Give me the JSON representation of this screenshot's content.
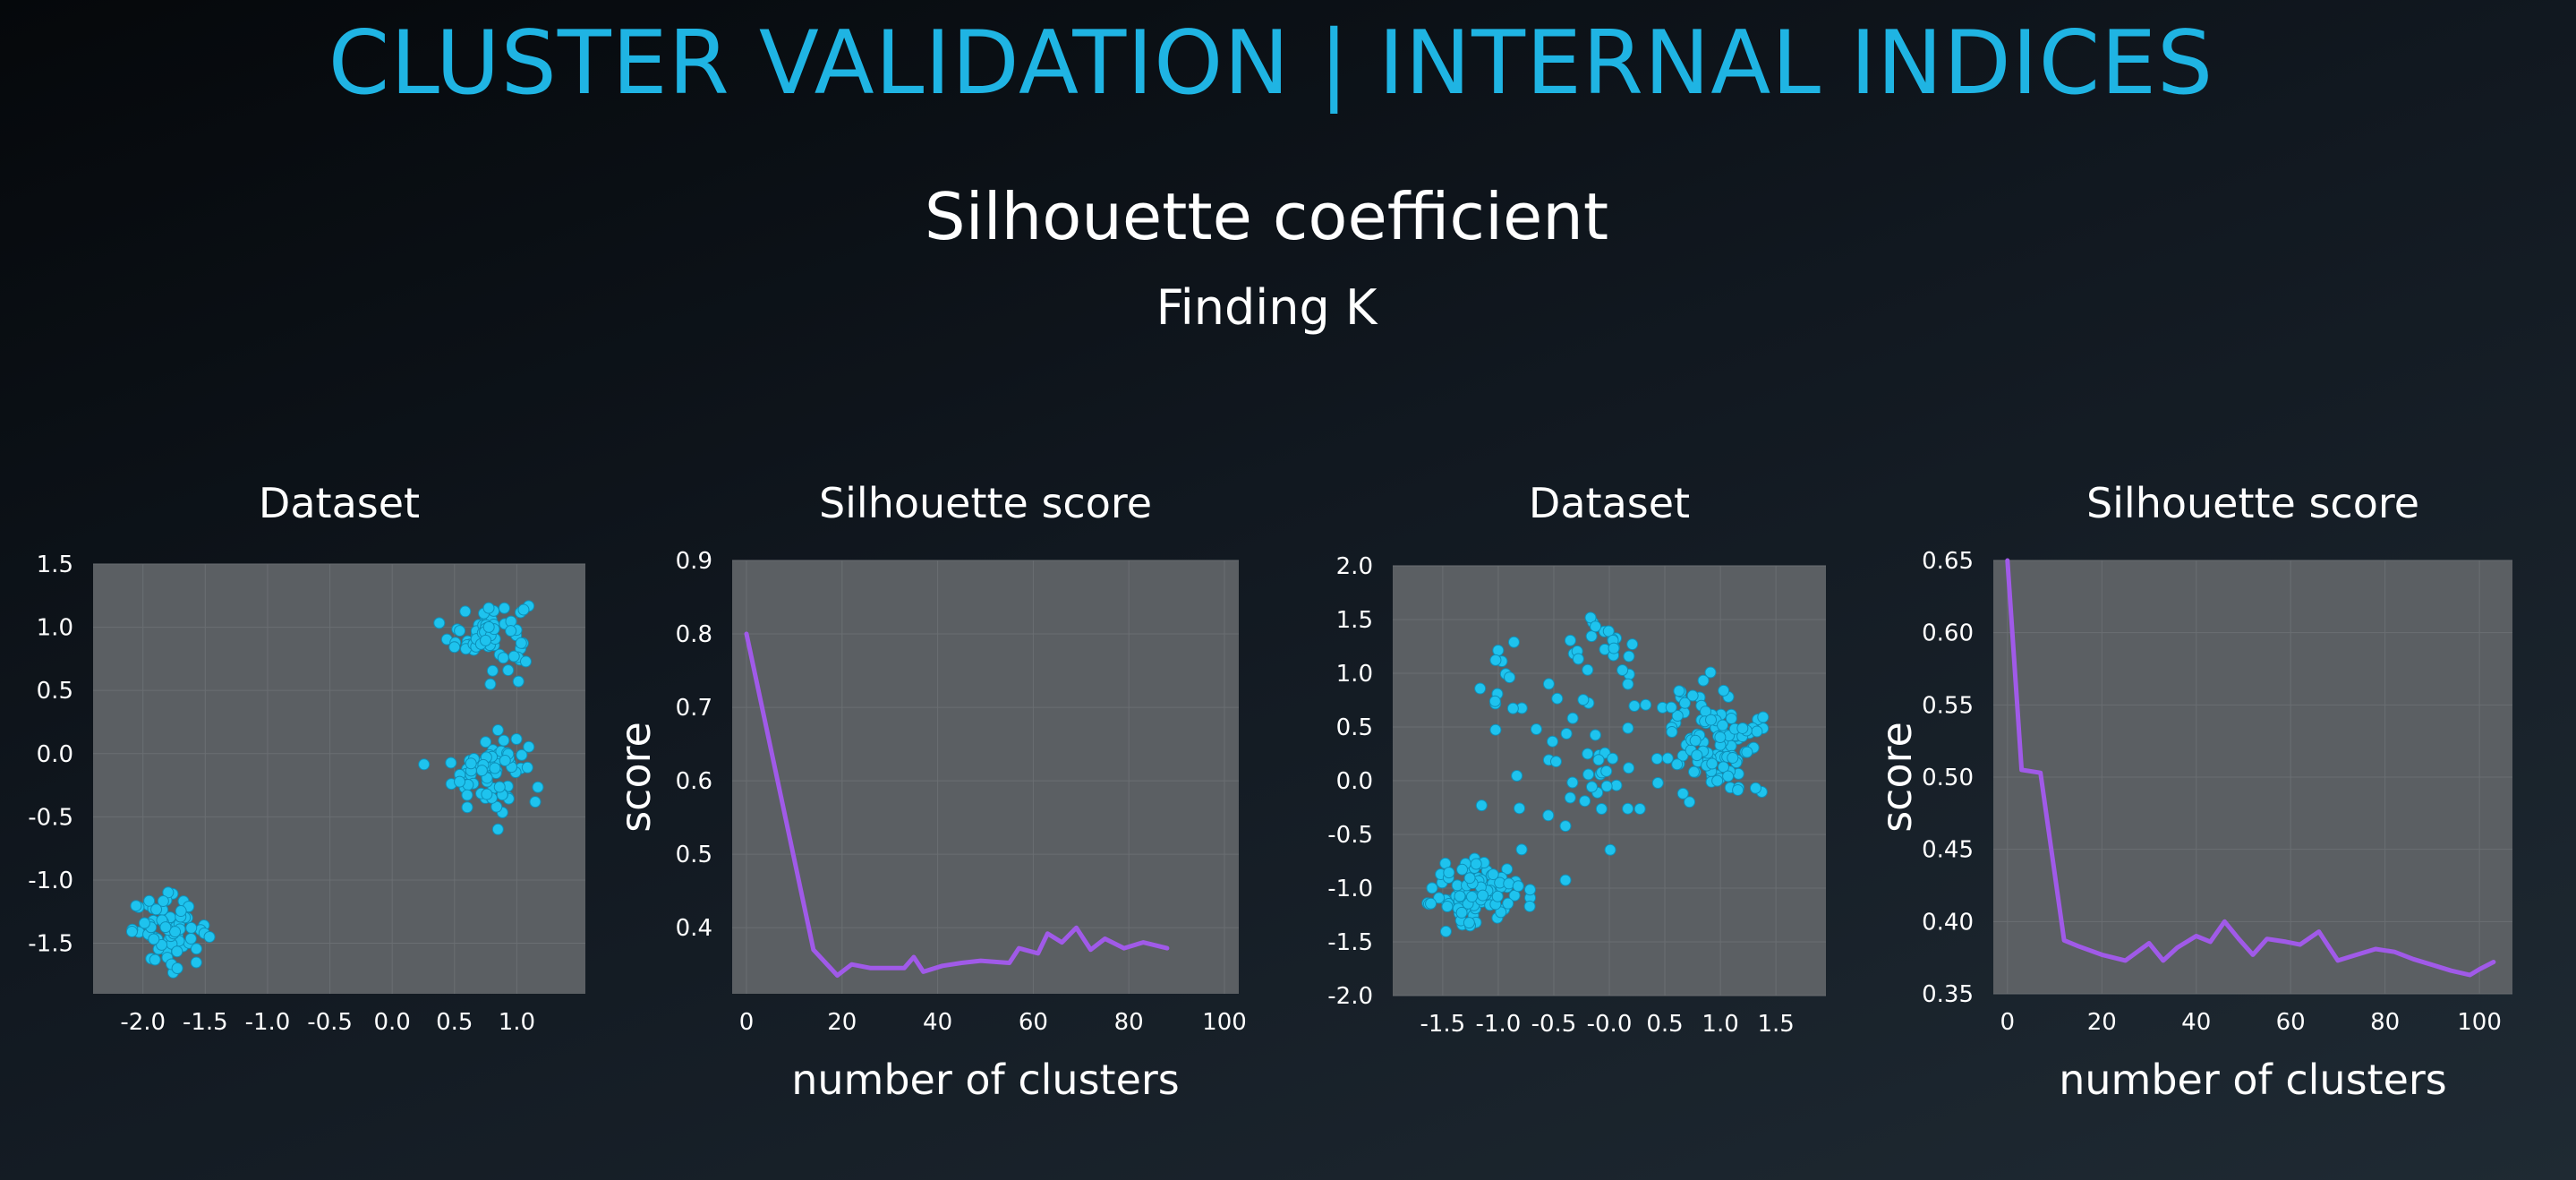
{
  "slide": {
    "title": "CLUSTER VALIDATION | INTERNAL INDICES",
    "subtitle": "Silhouette coefficient",
    "subsubtitle": "Finding K"
  },
  "colors": {
    "title": "#1fb4e3",
    "plot_bg": "#5b5f63",
    "point": "#1ec3ee",
    "line": "#a05ae8"
  },
  "chart_data": [
    {
      "type": "scatter",
      "title": "Dataset",
      "xlabel": "",
      "ylabel": "",
      "xlim": [
        -2.4,
        1.55
      ],
      "ylim": [
        -1.9,
        1.5
      ],
      "xticks": [
        -2.0,
        -1.5,
        -1.0,
        -0.5,
        0.0,
        0.5,
        1.0
      ],
      "xtick_labels": [
        "-2.0",
        "-1.5",
        "-1.0",
        "-0.5",
        "0.0",
        "0.5",
        "1.0"
      ],
      "yticks": [
        1.5,
        1.0,
        0.5,
        0.0,
        -0.5,
        -1.0,
        -1.5
      ],
      "ytick_labels": [
        "1.5",
        "1.0",
        "0.5",
        "0.0",
        "-0.5",
        "-1.0",
        "-1.5"
      ],
      "grid": true,
      "clusters": [
        {
          "center": [
            0.78,
            0.95
          ],
          "spread": [
            0.16,
            0.14
          ],
          "n": 70
        },
        {
          "center": [
            0.78,
            -0.14
          ],
          "spread": [
            0.15,
            0.15
          ],
          "n": 70
        },
        {
          "center": [
            -1.78,
            -1.4
          ],
          "spread": [
            0.15,
            0.13
          ],
          "n": 70
        }
      ]
    },
    {
      "type": "line",
      "title": "Silhouette score",
      "xlabel": "number of clusters",
      "ylabel": "score",
      "xlim": [
        -3,
        103
      ],
      "ylim": [
        0.31,
        0.9
      ],
      "xticks": [
        0,
        20,
        40,
        60,
        80,
        100
      ],
      "xtick_labels": [
        "0",
        "20",
        "40",
        "60",
        "80",
        "100"
      ],
      "yticks": [
        0.9,
        0.8,
        0.7,
        0.6,
        0.5,
        0.4
      ],
      "ytick_labels": [
        "0.9",
        "0.8",
        "0.7",
        "0.6",
        "0.5",
        "0.4"
      ],
      "grid": true,
      "series": [
        {
          "x": [
            0,
            14,
            19,
            22,
            26,
            29,
            33,
            35,
            37,
            41,
            45,
            49,
            53,
            55,
            57,
            61,
            63,
            66,
            69,
            72,
            75,
            79,
            83,
            88
          ],
          "y": [
            0.8,
            0.37,
            0.335,
            0.35,
            0.345,
            0.345,
            0.345,
            0.36,
            0.34,
            0.348,
            0.352,
            0.355,
            0.353,
            0.352,
            0.372,
            0.365,
            0.392,
            0.38,
            0.4,
            0.37,
            0.385,
            0.372,
            0.38,
            0.372
          ]
        }
      ]
    },
    {
      "type": "scatter",
      "title": "Dataset",
      "xlabel": "",
      "ylabel": "",
      "xlim": [
        -1.95,
        1.95
      ],
      "ylim": [
        -2.0,
        2.0
      ],
      "xticks": [
        -1.5,
        -1.0,
        -0.5,
        0.0,
        0.5,
        1.0,
        1.5
      ],
      "xtick_labels": [
        "-1.5",
        "-1.0",
        "-0.5",
        "-0.0",
        "0.5",
        "1.0",
        "1.5"
      ],
      "yticks": [
        2.0,
        1.5,
        1.0,
        0.5,
        0.0,
        -0.5,
        -1.0,
        -1.5,
        -2.0
      ],
      "ytick_labels": [
        "2.0",
        "1.5",
        "1.0",
        "0.5",
        "0.0",
        "-0.5",
        "-1.0",
        "-1.5",
        "-2.0"
      ],
      "grid": true,
      "clusters": [
        {
          "center": [
            -1.2,
            -1.05
          ],
          "spread": [
            0.22,
            0.16
          ],
          "n": 110
        },
        {
          "center": [
            0.95,
            0.35
          ],
          "spread": [
            0.22,
            0.25
          ],
          "n": 110
        },
        {
          "center": [
            -0.15,
            0.1
          ],
          "spread": [
            0.38,
            0.45
          ],
          "n": 45
        },
        {
          "center": [
            -0.05,
            1.25
          ],
          "spread": [
            0.18,
            0.15
          ],
          "n": 22
        },
        {
          "center": [
            -0.9,
            0.95
          ],
          "spread": [
            0.12,
            0.25
          ],
          "n": 12
        }
      ]
    },
    {
      "type": "line",
      "title": "Silhouette score",
      "xlabel": "number of clusters",
      "ylabel": "score",
      "xlim": [
        -3,
        107
      ],
      "ylim": [
        0.35,
        0.65
      ],
      "xticks": [
        0,
        20,
        40,
        60,
        80,
        100
      ],
      "xtick_labels": [
        "0",
        "20",
        "40",
        "60",
        "80",
        "100"
      ],
      "yticks": [
        0.65,
        0.6,
        0.55,
        0.5,
        0.45,
        0.4,
        0.35
      ],
      "ytick_labels": [
        "0.65",
        "0.60",
        "0.55",
        "0.50",
        "0.45",
        "0.40",
        "0.35"
      ],
      "grid": true,
      "series": [
        {
          "x": [
            0,
            3,
            7,
            12,
            15,
            20,
            25,
            30,
            33,
            36,
            40,
            43,
            46,
            49,
            52,
            55,
            59,
            62,
            66,
            70,
            74,
            78,
            82,
            86,
            90,
            94,
            98,
            100,
            103
          ],
          "y": [
            0.65,
            0.505,
            0.503,
            0.387,
            0.383,
            0.377,
            0.373,
            0.385,
            0.373,
            0.382,
            0.39,
            0.386,
            0.4,
            0.388,
            0.377,
            0.388,
            0.386,
            0.384,
            0.393,
            0.373,
            0.377,
            0.381,
            0.379,
            0.374,
            0.37,
            0.366,
            0.363,
            0.367,
            0.372
          ]
        }
      ]
    }
  ]
}
